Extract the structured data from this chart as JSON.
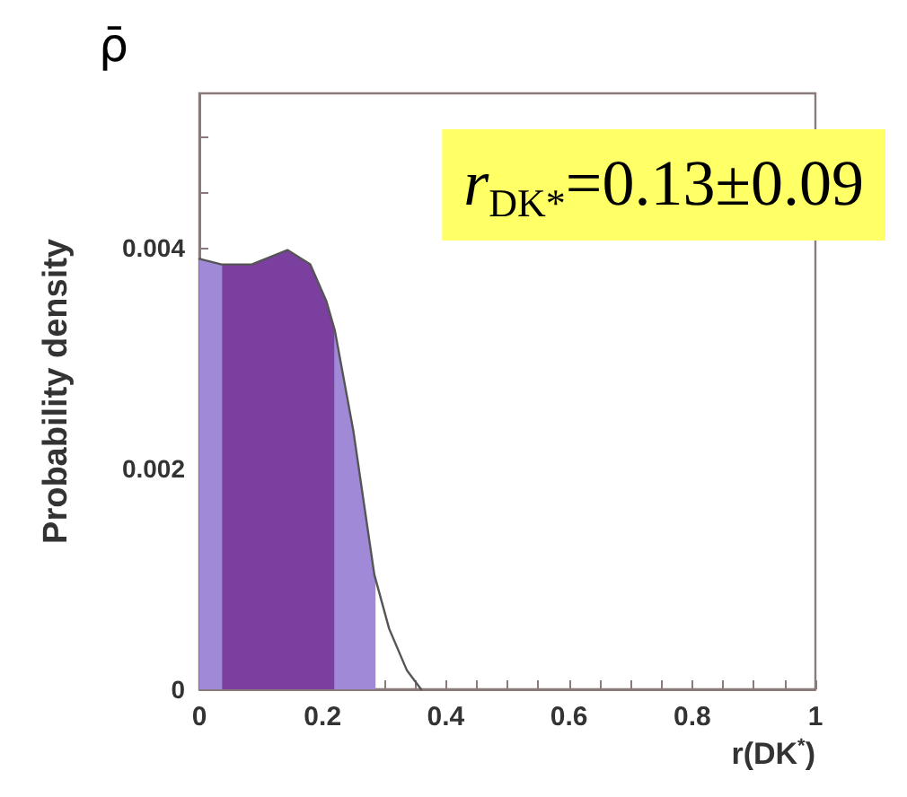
{
  "chart_data": {
    "type": "line",
    "title": "ρ̄",
    "xlabel": "r(DK$^{*}$)",
    "ylabel": "Probability density",
    "annotations": [
      "r$_{DK*}$=0.13±0.09"
    ],
    "series": [
      {
        "type": "area",
        "color": "#a08ad8",
        "x": [
          0,
          0.036,
          0.22,
          0.25,
          0.284,
          0.286
        ],
        "values": [
          0.0039,
          0.00385,
          0.00325,
          0.00234,
          0.00104,
          0.001
        ]
      },
      {
        "type": "area",
        "color": "#7b3fa0",
        "x": [
          0.037,
          0.085,
          0.143,
          0.18,
          0.206,
          0.219
        ],
        "values": [
          0.00385,
          0.00385,
          0.00398,
          0.00385,
          0.00352,
          0.00327
        ]
      },
      {
        "color": "#555555",
        "x": [
          0,
          0.036,
          0.085,
          0.143,
          0.18,
          0.206,
          0.22,
          0.25,
          0.284,
          0.308,
          0.337,
          0.36
        ],
        "values": [
          0.0039,
          0.00385,
          0.00385,
          0.00398,
          0.00385,
          0.00352,
          0.00325,
          0.00234,
          0.00104,
          0.00055,
          0.00017,
          0
        ]
      }
    ],
    "xlim": [
      0,
      1
    ],
    "xticks": [
      0,
      {
        "value": 0.05,
        "label": null
      },
      {
        "value": 0.1,
        "label": null
      },
      {
        "value": 0.15,
        "label": null
      },
      0.2,
      {
        "value": 0.25,
        "label": null
      },
      {
        "value": 0.3,
        "label": null
      },
      {
        "value": 0.35,
        "label": null
      },
      0.4,
      {
        "value": 0.45,
        "label": null
      },
      {
        "value": 0.5,
        "label": null
      },
      {
        "value": 0.55,
        "label": null
      },
      0.6,
      {
        "value": 0.65,
        "label": null
      },
      {
        "value": 0.7,
        "label": null
      },
      {
        "value": 0.75,
        "label": null
      },
      0.8,
      {
        "value": 0.85,
        "label": null
      },
      {
        "value": 0.9,
        "label": null
      },
      {
        "value": 0.95,
        "label": null
      },
      1
    ],
    "ylim": [
      0,
      0.0054
    ],
    "yticks": [
      0,
      {
        "value": 0.0005,
        "label": null
      },
      {
        "value": 0.001,
        "label": null
      },
      {
        "value": 0.0015,
        "label": null
      },
      0.002,
      {
        "value": 0.0025,
        "label": null
      },
      {
        "value": 0.003,
        "label": null
      },
      {
        "value": 0.0035,
        "label": null
      },
      0.004,
      {
        "value": 0.0045,
        "label": null
      },
      {
        "value": 0.005,
        "label": null
      }
    ],
    "grid": false,
    "marker": "none",
    "line_style": "solid"
  }
}
